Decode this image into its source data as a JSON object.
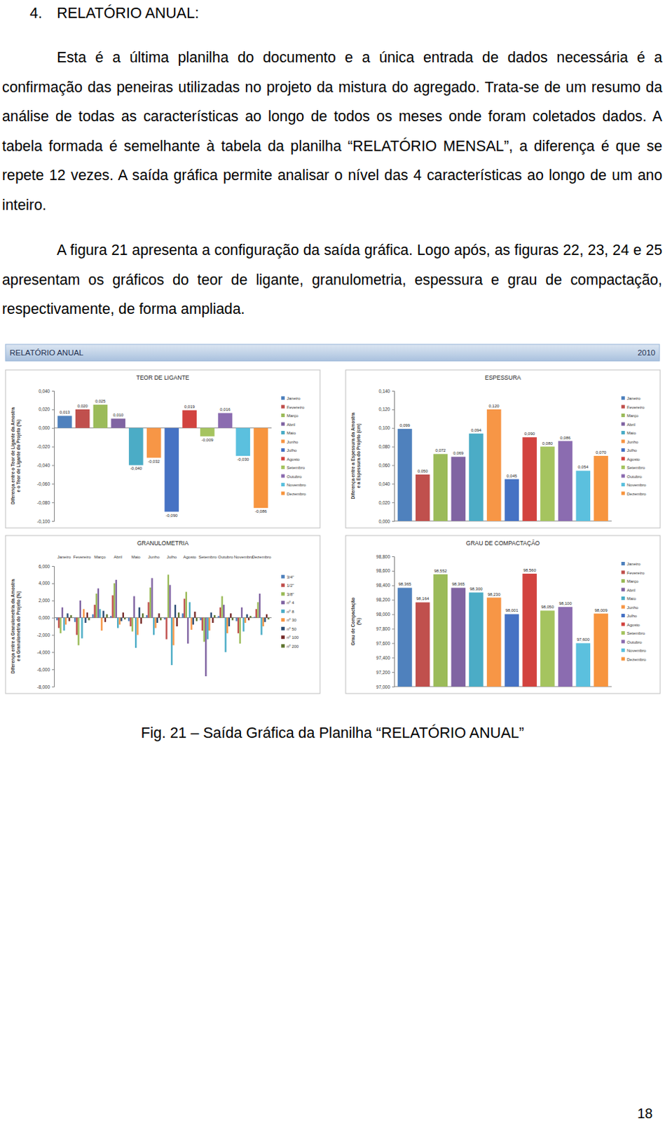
{
  "heading": {
    "number": "4.",
    "text": "RELATÓRIO ANUAL:"
  },
  "paragraphs": [
    "Esta é a última planilha do documento e a única entrada de dados necessária é a confirmação das peneiras utilizadas no projeto da mistura do agregado. Trata-se de um resumo da análise de todas as características ao longo de todos os meses onde foram coletados dados. A tabela formada é semelhante à tabela da planilha “RELATÓRIO MENSAL”, a diferença é que se repete 12 vezes. A saída gráfica permite analisar o nível das 4 características ao longo de um ano inteiro.",
    "A figura 21 apresenta a configuração da saída gráfica. Logo após, as figuras 22, 23, 24 e 25 apresentam os gráficos do teor de ligante, granulometria, espessura e grau de compactação, respectivamente, de forma ampliada."
  ],
  "figure": {
    "banner": {
      "title": "RELATÓRIO ANUAL",
      "year": "2010"
    },
    "caption": "Fig. 21 – Saída Gráfica da Planilha “RELATÓRIO ANUAL”"
  },
  "page_number": 18,
  "chart_data": [
    {
      "type": "bar",
      "title": "TEOR DE LIGANTE",
      "y_label": "Diferença entre o Teor de Ligante da Amostra e o Teor de Ligante do Projeto (%)",
      "categories": [
        "Janeiro",
        "Fevereiro",
        "Março",
        "Abril",
        "Maio",
        "Junho",
        "Julho",
        "Agosto",
        "Setembro",
        "Outubro",
        "Novembro",
        "Dezembro"
      ],
      "values": [
        0.013,
        0.02,
        0.025,
        0.01,
        -0.04,
        -0.032,
        -0.09,
        0.019,
        -0.009,
        0.016,
        -0.03,
        -0.086
      ],
      "value_labels": [
        "0,013",
        "0,020",
        "0,025",
        "0,010",
        "-0,040",
        "-0,032",
        "-0,090",
        "0,019",
        "-0,009",
        "0,016",
        "-0,030",
        "-0,086"
      ],
      "colors": [
        "#4f81bd",
        "#c0504d",
        "#9bbb59",
        "#8064a2",
        "#4bacc6",
        "#f79646",
        "#4672c4",
        "#d2433f",
        "#a5c45f",
        "#8b6cb0",
        "#5bc0de",
        "#f7953f"
      ],
      "ylim": [
        -0.1,
        0.04
      ],
      "yticks": [
        {
          "value": -0.1,
          "label": "-0,100"
        },
        {
          "value": -0.08,
          "label": "-0,080"
        },
        {
          "value": -0.06,
          "label": "-0,060"
        },
        {
          "value": -0.04,
          "label": "-0,040"
        },
        {
          "value": -0.02,
          "label": "-0,020"
        },
        {
          "value": 0,
          "label": "0,000"
        },
        {
          "value": 0.02,
          "label": "0,020"
        },
        {
          "value": 0.04,
          "label": "0,040"
        }
      ],
      "data_labels": true,
      "legend": "right",
      "tick_labels": "y",
      "grid": false
    },
    {
      "type": "bar",
      "title": "ESPESSURA",
      "y_label": "Diferença entre a Espessura da Amostra e a Espessura do Projeto (cm)",
      "categories": [
        "Janeiro",
        "Fevereiro",
        "Março",
        "Abril",
        "Maio",
        "Junho",
        "Julho",
        "Agosto",
        "Setembro",
        "Outubro",
        "Novembro",
        "Dezembro"
      ],
      "values": [
        0.099,
        0.05,
        0.072,
        0.069,
        0.094,
        0.12,
        0.045,
        0.09,
        0.08,
        0.086,
        0.054,
        0.07
      ],
      "value_labels": [
        "0,099",
        "0,050",
        "0,072",
        "0,069",
        "0,094",
        "0,120",
        "0,045",
        "0,090",
        "0,080",
        "0,086",
        "0,054",
        "0,070"
      ],
      "colors": [
        "#4f81bd",
        "#c0504d",
        "#9bbb59",
        "#8064a2",
        "#4bacc6",
        "#f79646",
        "#4672c4",
        "#d2433f",
        "#a5c45f",
        "#8b6cb0",
        "#5bc0de",
        "#f7953f"
      ],
      "ylim": [
        0,
        0.14
      ],
      "yticks": [
        {
          "value": 0,
          "label": "0,000"
        },
        {
          "value": 0.02,
          "label": "0,020"
        },
        {
          "value": 0.04,
          "label": "0,040"
        },
        {
          "value": 0.06,
          "label": "0,060"
        },
        {
          "value": 0.08,
          "label": "0,080"
        },
        {
          "value": 0.1,
          "label": "0,100"
        },
        {
          "value": 0.12,
          "label": "0,120"
        },
        {
          "value": 0.14,
          "label": "0,140"
        }
      ],
      "data_labels": true,
      "legend": "right",
      "tick_labels": "y",
      "grid": false
    },
    {
      "type": "bar",
      "title": "GRANULOMETRIA",
      "y_label": "Diferença entre a Granulometria da Amostra e a Granulometria do Projeto (%)",
      "categories": [
        "Janeiro",
        "Fevereiro",
        "Março",
        "Abril",
        "Maio",
        "Junho",
        "Julho",
        "Agosto",
        "Setembro",
        "Outubro",
        "Novembro",
        "Dezembro"
      ],
      "series": [
        {
          "name": "3/4\"",
          "color": "#4f81bd",
          "values": [
            -0.3,
            -0.5,
            0.4,
            0.2,
            -0.4,
            0.3,
            -0.2,
            0.5,
            -0.3,
            0.2,
            -0.4,
            0.1
          ]
        },
        {
          "name": "1/2\"",
          "color": "#c0504d",
          "values": [
            -1.2,
            -2.0,
            1.5,
            2.6,
            -1.0,
            1.8,
            -2.5,
            2.2,
            -1.5,
            1.2,
            -1.8,
            1.0
          ]
        },
        {
          "name": "3/8\"",
          "color": "#9bbb59",
          "values": [
            -1.8,
            -3.2,
            2.8,
            4.0,
            -1.6,
            3.5,
            5.0,
            3.0,
            -2.8,
            2.5,
            -3.0,
            1.8
          ]
        },
        {
          "name": "nº 4",
          "color": "#8064a2",
          "values": [
            1.2,
            2.0,
            3.4,
            4.4,
            2.5,
            4.6,
            3.8,
            -3.0,
            -6.8,
            1.5,
            1.2,
            2.8
          ]
        },
        {
          "name": "nº 8",
          "color": "#4bacc6",
          "values": [
            -1.5,
            -2.4,
            1.0,
            -1.2,
            -3.5,
            -2.0,
            -5.5,
            1.8,
            -2.5,
            -4.0,
            -1.6,
            -2.0
          ]
        },
        {
          "name": "nº 30",
          "color": "#f79646",
          "values": [
            -0.8,
            1.0,
            -1.5,
            -0.8,
            -2.0,
            -1.2,
            -3.2,
            -1.4,
            -1.5,
            -1.8,
            -0.6,
            -1.0
          ]
        },
        {
          "name": "nº 50",
          "color": "#2c4d75",
          "values": [
            0.5,
            -0.6,
            0.8,
            -0.4,
            1.2,
            -0.6,
            1.5,
            -0.8,
            0.6,
            -1.0,
            0.4,
            -0.5
          ]
        },
        {
          "name": "nº 100",
          "color": "#772c2a",
          "values": [
            -0.4,
            0.6,
            -0.5,
            0.6,
            -0.7,
            0.5,
            -1.0,
            0.7,
            -0.6,
            0.5,
            -0.3,
            0.4
          ]
        },
        {
          "name": "nº 200",
          "color": "#5f7530",
          "values": [
            0.3,
            -0.3,
            0.4,
            -0.2,
            0.5,
            -0.3,
            0.6,
            -0.4,
            0.3,
            -0.3,
            0.2,
            -0.2
          ]
        }
      ],
      "ylim": [
        -8,
        6
      ],
      "yticks": [
        {
          "value": -8,
          "label": "-8,000"
        },
        {
          "value": -6,
          "label": "-6,000"
        },
        {
          "value": -4,
          "label": "-4,000"
        },
        {
          "value": -2,
          "label": "-2,000"
        },
        {
          "value": 0,
          "label": "0,000"
        },
        {
          "value": 2,
          "label": "2,000"
        },
        {
          "value": 4,
          "label": "4,000"
        },
        {
          "value": 6,
          "label": "6,000"
        }
      ],
      "legend": "right",
      "grid": false
    },
    {
      "type": "bar",
      "title": "GRAU DE COMPACTAÇÃO",
      "y_label": "Grau de Compactação (%)",
      "categories": [
        "Janeiro",
        "Fevereiro",
        "Março",
        "Abril",
        "Maio",
        "Junho",
        "Julho",
        "Agosto",
        "Setembro",
        "Outubro",
        "Novembro",
        "Dezembro"
      ],
      "values": [
        98.365,
        98.164,
        98.552,
        98.365,
        98.3,
        98.23,
        98.001,
        98.56,
        98.05,
        98.1,
        97.6,
        98.009
      ],
      "value_labels": [
        "98,365",
        "98,164",
        "98,552",
        "98,365",
        "98,300",
        "98,230",
        "98,001",
        "98,560",
        "98,050",
        "98,100",
        "97,600",
        "98,009"
      ],
      "colors": [
        "#4f81bd",
        "#c0504d",
        "#9bbb59",
        "#8064a2",
        "#4bacc6",
        "#f79646",
        "#4672c4",
        "#d2433f",
        "#a5c45f",
        "#8b6cb0",
        "#5bc0de",
        "#f7953f"
      ],
      "ylim": [
        97,
        98.8
      ],
      "yticks": [
        {
          "value": 97,
          "label": "97,000"
        },
        {
          "value": 97.2,
          "label": "97,200"
        },
        {
          "value": 97.4,
          "label": "97,400"
        },
        {
          "value": 97.6,
          "label": "97,600"
        },
        {
          "value": 97.8,
          "label": "97,800"
        },
        {
          "value": 98,
          "label": "98,000"
        },
        {
          "value": 98.2,
          "label": "98,200"
        },
        {
          "value": 98.4,
          "label": "98,400"
        },
        {
          "value": 98.6,
          "label": "98,600"
        },
        {
          "value": 98.8,
          "label": "98,800"
        }
      ],
      "data_labels": true,
      "legend": "right",
      "tick_labels": "y",
      "grid": false
    }
  ]
}
